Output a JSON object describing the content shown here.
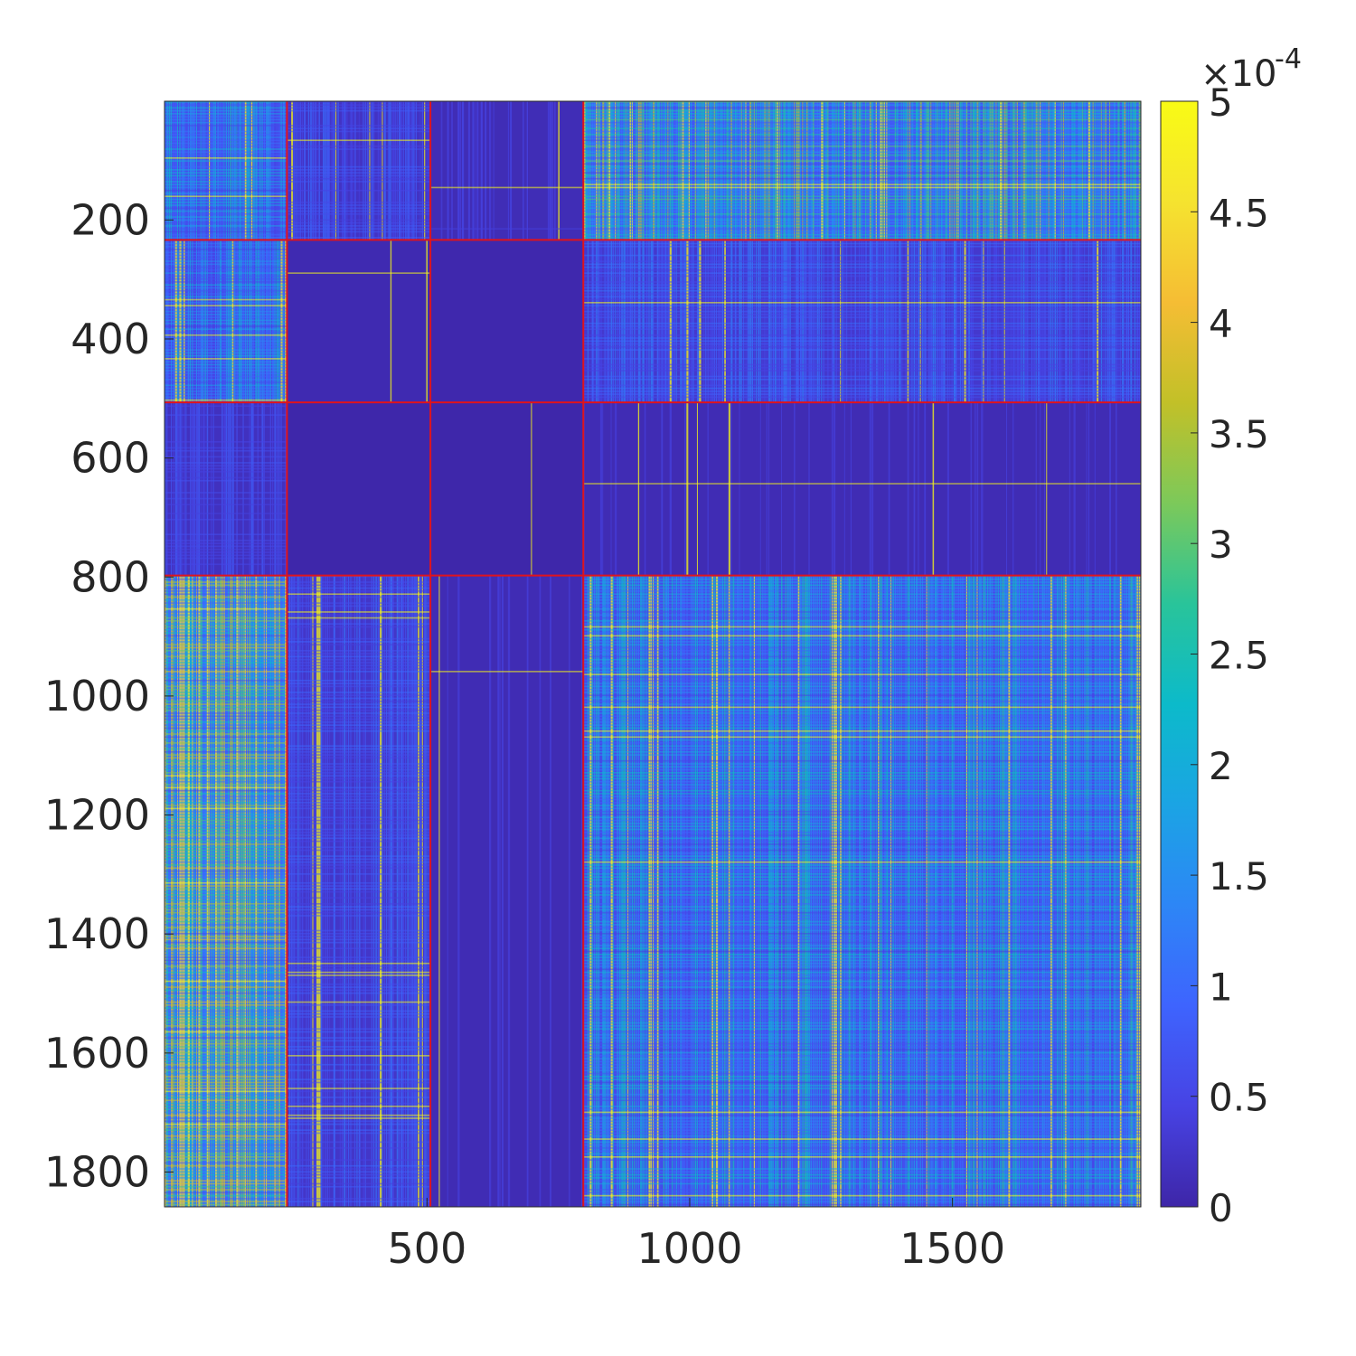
{
  "chart_data": {
    "type": "heatmap",
    "title": "",
    "xlabel": "",
    "ylabel": "",
    "xlim": [
      1,
      1858
    ],
    "ylim": [
      1,
      1858
    ],
    "y_reversed": true,
    "x_ticks": [
      500,
      1000,
      1500
    ],
    "x_tick_labels": [
      "500",
      "1000",
      "1500"
    ],
    "y_ticks": [
      200,
      400,
      600,
      800,
      1000,
      1200,
      1400,
      1600,
      1800
    ],
    "y_tick_labels": [
      "200",
      "400",
      "600",
      "800",
      "1000",
      "1200",
      "1400",
      "1600",
      "1800"
    ],
    "block_boundaries": [
      233,
      506,
      797
    ],
    "block_boundary_color": "#e0131c",
    "colormap": "parula",
    "colorbar": {
      "clim": [
        0,
        5
      ],
      "ticks": [
        0,
        0.5,
        1,
        1.5,
        2,
        2.5,
        3,
        3.5,
        4,
        4.5,
        5
      ],
      "tick_labels": [
        "0",
        "0.5",
        "1",
        "1.5",
        "2",
        "2.5",
        "3",
        "3.5",
        "4",
        "4.5",
        "5"
      ],
      "exponent_label": "×10",
      "exponent_power": "-4",
      "stops": [
        "#3e26a8",
        "#4743e4",
        "#3e64fe",
        "#2d86f6",
        "#1ba4e4",
        "#0cbaca",
        "#29c49a",
        "#7cc95a",
        "#c2c028",
        "#f5bd34",
        "#f5e32f",
        "#f9fb15"
      ]
    },
    "background_color": "#3d2ea8",
    "block_typical_values": [
      [
        1.5,
        0.6,
        0.3,
        2.2
      ],
      [
        1.4,
        0.2,
        0.1,
        0.8
      ],
      [
        0.5,
        0.05,
        0.05,
        0.25
      ],
      [
        2.8,
        0.7,
        0.25,
        1.6
      ]
    ]
  }
}
